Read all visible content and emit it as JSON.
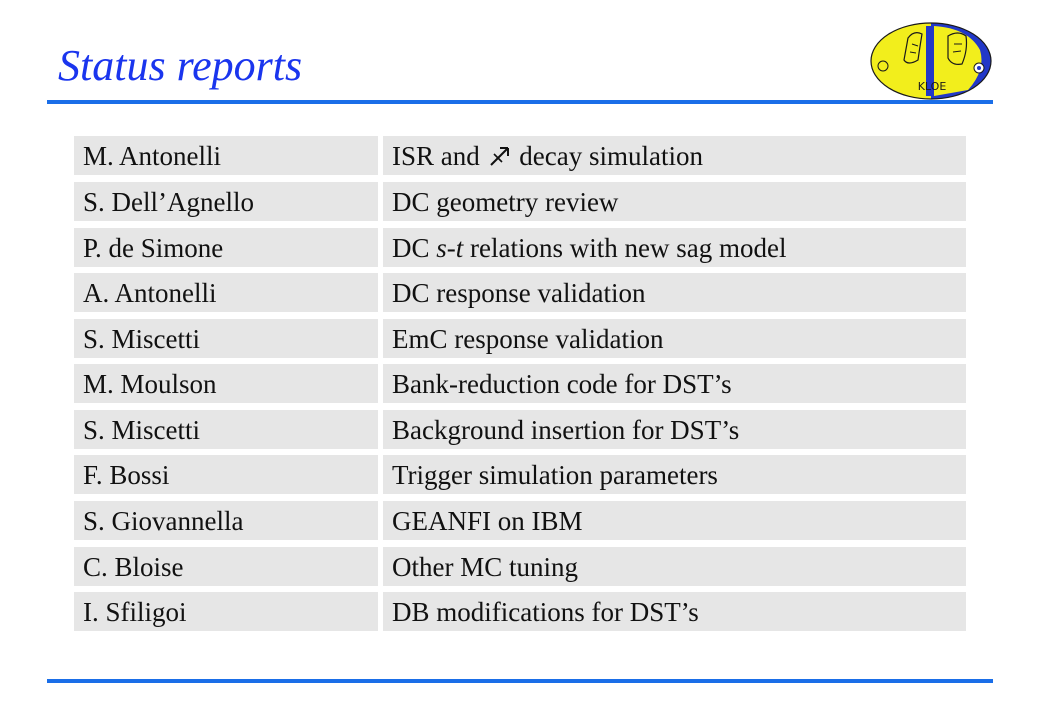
{
  "title": "Status reports",
  "colors": {
    "title": "#1a35ee",
    "rule": "#1a6ee8",
    "cell_bg": "#e6e6e6",
    "logo_yellow": "#f2ee1c",
    "logo_blue": "#2238c8"
  },
  "logo": {
    "icon": "kloe-logo-icon",
    "text": "KLOE"
  },
  "rows": [
    {
      "name": "M. Antonelli",
      "topic_before": "ISR and",
      "topic_symbol_icon": "phi-arrow-icon",
      "topic_after": "decay simulation"
    },
    {
      "name": "S. Dell’Agnello",
      "topic": "DC geometry review"
    },
    {
      "name": "P. de Simone",
      "topic_before": "DC",
      "topic_italic": "s-t",
      "topic_after": "relations with new sag model"
    },
    {
      "name": "A. Antonelli",
      "topic": "DC response validation"
    },
    {
      "name": "S. Miscetti",
      "topic": "EmC response validation"
    },
    {
      "name": "M. Moulson",
      "topic": "Bank-reduction code for DST’s"
    },
    {
      "name": "S. Miscetti",
      "topic": "Background insertion for DST’s"
    },
    {
      "name": "F. Bossi",
      "topic": "Trigger simulation parameters"
    },
    {
      "name": "S. Giovannella",
      "topic": "GEANFI on IBM"
    },
    {
      "name": "C. Bloise",
      "topic": "Other MC tuning"
    },
    {
      "name": "I. Sfiligoi",
      "topic": "DB modifications for DST’s"
    }
  ]
}
